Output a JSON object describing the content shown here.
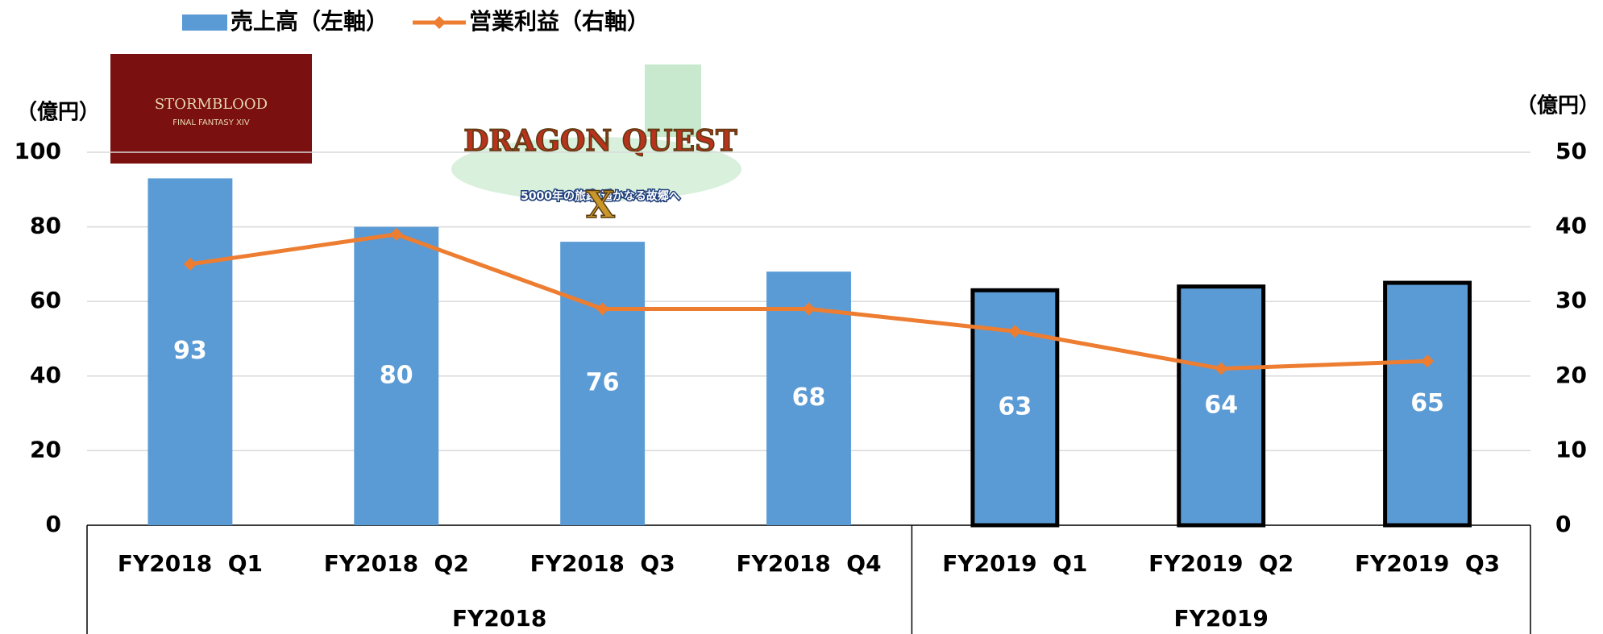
{
  "chart_data": {
    "type": "bar_line",
    "legend_position": "top-left",
    "y_unit": "（億円）",
    "y2_unit": "（億円）",
    "categories": [
      "FY2018  Q1",
      "FY2018  Q2",
      "FY2018  Q3",
      "FY2018  Q4",
      "FY2019  Q1",
      "FY2019  Q2",
      "FY2019  Q3"
    ],
    "groups": [
      {
        "label": "FY2018",
        "count": 4
      },
      {
        "label": "FY2019",
        "count": 3
      }
    ],
    "series": [
      {
        "name": "売上高（左軸）",
        "type": "bar",
        "color": "#5b9bd5",
        "values": [
          93,
          80,
          76,
          68,
          63,
          64,
          65
        ],
        "edgecolors": [
          "none",
          "none",
          "none",
          "none",
          "#000000",
          "#000000",
          "#000000"
        ]
      },
      {
        "name": "営業利益（右軸）",
        "type": "line",
        "axis": "y2",
        "color": "#ed7d31",
        "values": [
          35,
          39,
          29,
          29,
          26,
          21,
          22
        ]
      }
    ],
    "ylim": [
      0,
      100
    ],
    "yticks": [
      0,
      20,
      40,
      60,
      80,
      100
    ],
    "y2lim": [
      0,
      50
    ],
    "y2ticks": [
      0,
      10,
      20,
      30,
      40,
      50
    ],
    "grid": true,
    "images": [
      {
        "text": "STORMBLOOD",
        "subtext": "FINAL FANTASY XIV"
      },
      {
        "text": "DRAGON QUEST",
        "big": "X",
        "subtext": "5000年の旅路 遥かなる故郷へ"
      }
    ]
  }
}
